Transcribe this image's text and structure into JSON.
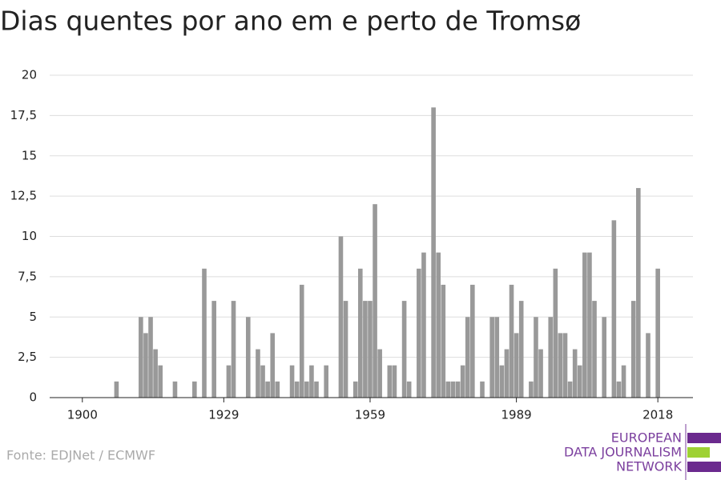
{
  "chart_data": {
    "type": "bar",
    "title": "Dias quentes por ano em e perto de Tromsø",
    "x": [
      1907,
      1912,
      1913,
      1914,
      1915,
      1916,
      1919,
      1923,
      1925,
      1927,
      1930,
      1931,
      1934,
      1936,
      1937,
      1938,
      1939,
      1940,
      1943,
      1944,
      1945,
      1946,
      1947,
      1948,
      1950,
      1953,
      1954,
      1956,
      1957,
      1958,
      1959,
      1960,
      1961,
      1963,
      1964,
      1966,
      1967,
      1969,
      1970,
      1972,
      1973,
      1974,
      1975,
      1976,
      1977,
      1978,
      1979,
      1980,
      1982,
      1984,
      1985,
      1986,
      1987,
      1988,
      1989,
      1990,
      1992,
      1993,
      1994,
      1996,
      1997,
      1998,
      1999,
      2000,
      2001,
      2002,
      2003,
      2004,
      2005,
      2007,
      2009,
      2010,
      2011,
      2013,
      2014,
      2016,
      2018
    ],
    "values": [
      1,
      5,
      4,
      5,
      3,
      2,
      1,
      1,
      8,
      6,
      2,
      6,
      5,
      3,
      2,
      1,
      4,
      1,
      2,
      1,
      7,
      1,
      2,
      1,
      2,
      10,
      6,
      1,
      8,
      6,
      6,
      12,
      3,
      2,
      2,
      6,
      1,
      8,
      9,
      18,
      9,
      7,
      1,
      1,
      1,
      2,
      5,
      7,
      1,
      5,
      5,
      2,
      3,
      7,
      4,
      6,
      1,
      5,
      3,
      5,
      8,
      4,
      4,
      1,
      3,
      2,
      9,
      9,
      6,
      5,
      11,
      1,
      2,
      6,
      13,
      4,
      8
    ],
    "color": "#999999",
    "xlim": [
      1893.3,
      2025.2
    ],
    "xticks": [
      1900,
      1929,
      1959,
      1989,
      2018
    ],
    "ylim": [
      0,
      20
    ],
    "yticks": [
      0,
      {
        "value": 2.5,
        "label": "2,5"
      },
      5,
      {
        "value": 7.5,
        "label": "7,5"
      },
      10,
      {
        "value": 12.5,
        "label": "12,5"
      },
      15,
      {
        "value": 17.5,
        "label": "17,5"
      },
      20
    ],
    "grid": true,
    "source": "Fonte: EDJNet / ECMWF"
  },
  "logo": {
    "lines": [
      "EUROPEAN",
      "DATA JOURNALISM",
      "NETWORK"
    ]
  }
}
